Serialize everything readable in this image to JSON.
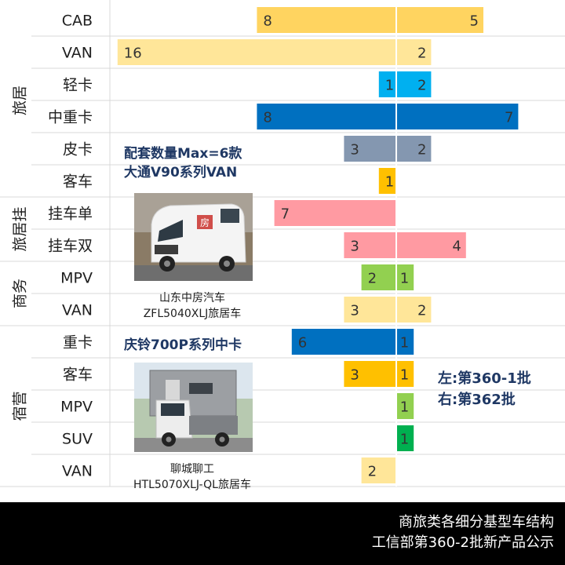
{
  "chart_data": {
    "type": "bar",
    "orientation": "horizontal-diverging",
    "groups": [
      {
        "name": "旅居",
        "rows": [
          {
            "label": "CAB",
            "left": 8,
            "right": 5,
            "color": "#FFD460"
          },
          {
            "label": "VAN",
            "left": 16,
            "right": 2,
            "color": "#FFE699"
          },
          {
            "label": "轻卡",
            "left": 1,
            "right": 2,
            "color": "#00B0F0"
          },
          {
            "label": "中重卡",
            "left": 8,
            "right": 7,
            "color": "#0070C0"
          },
          {
            "label": "皮卡",
            "left": 3,
            "right": 2,
            "color": "#8497B0"
          },
          {
            "label": "客车",
            "left": 1,
            "right": null,
            "color": "#FFC000"
          }
        ]
      },
      {
        "name": "旅居挂",
        "rows": [
          {
            "label": "挂车单",
            "left": 7,
            "right": null,
            "color": "#FF9AA2"
          },
          {
            "label": "挂车双",
            "left": 3,
            "right": 4,
            "color": "#FF9AA2"
          }
        ]
      },
      {
        "name": "商务",
        "rows": [
          {
            "label": "MPV",
            "left": 2,
            "right": 1,
            "color": "#92D050"
          },
          {
            "label": "VAN",
            "left": 3,
            "right": 2,
            "color": "#FFE699"
          }
        ]
      },
      {
        "name": "宿营",
        "rows": [
          {
            "label": "重卡",
            "left": 6,
            "right": 1,
            "color": "#0070C0"
          },
          {
            "label": "客车",
            "left": 3,
            "right": 1,
            "color": "#FFC000"
          },
          {
            "label": "MPV",
            "left": null,
            "right": 1,
            "color": "#92D050"
          },
          {
            "label": "SUV",
            "left": null,
            "right": 1,
            "color": "#00B050"
          },
          {
            "label": "VAN",
            "left": 2,
            "right": null,
            "color": "#FFE699"
          }
        ]
      }
    ],
    "legend_note": [
      "左:第360-1批",
      "右:第362批"
    ],
    "grid": true
  },
  "annotations": {
    "van_title_1": "配套数量Max=6款",
    "van_title_2": "大通V90系列VAN",
    "van_caption_1": "山东中房汽车",
    "van_caption_2": "ZFL5040XLJ旅居车",
    "truck_title": "庆铃700P系列中卡",
    "truck_caption_1": "聊城聊工",
    "truck_caption_2": "HTL5070XLJ-QL旅居车",
    "van_photo_text": "房"
  },
  "footer": {
    "line1": "商旅类各细分基型车结构",
    "line2": "工信部第360-2批新产品公示"
  },
  "colors": {
    "label_text": "#1F1F1F",
    "annotation_text": "#1F3864",
    "footer_bg": "#000000",
    "footer_text": "#ffffff",
    "grid": "#D9D9D9"
  }
}
